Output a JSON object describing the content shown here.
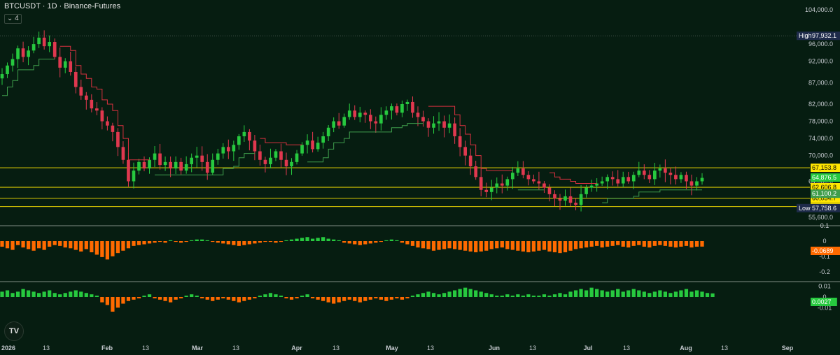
{
  "header": {
    "symbol": "BTCUSDT",
    "interval": "1D",
    "exchange": "Binance-Futures",
    "title": "BTCUSDT · 1D · Binance-Futures",
    "collapse_count": "4"
  },
  "colors": {
    "background": "#061d11",
    "up_candle": "#27c93f",
    "down_candle": "#e0384f",
    "supertrend_up": "#3f9d4c",
    "supertrend_down": "#d7313f",
    "level_line": "#ffe600",
    "osc_positive": "#27c93f",
    "osc_negative": "#ff6a00",
    "axis_text": "#c9cdd3"
  },
  "chart_data": [
    {
      "type": "candlestick",
      "panel": "price",
      "price_axis_ticks": [
        "104,000.0",
        "96,000.0",
        "92,000.0",
        "87,000.0",
        "82,000.0",
        "78,000.0",
        "74,000.0",
        "70,000.0",
        "64,000.0",
        "55,600.0"
      ],
      "time_axis_ticks": [
        "2026",
        "13",
        "Feb",
        "13",
        "Mar",
        "13",
        "Apr",
        "13",
        "May",
        "13",
        "Jun",
        "13",
        "Jul",
        "13",
        "Aug",
        "13",
        "Sep"
      ],
      "ylim": [
        55000,
        105000
      ],
      "markers": {
        "high": {
          "label": "High",
          "value": "97,932.1"
        },
        "low": {
          "label": "Low",
          "value": "57,758.6"
        },
        "last": {
          "value": "64,876.5"
        }
      },
      "horizontal_levels": [
        {
          "value": "67,153.8",
          "color": "#ffe600"
        },
        {
          "value": "62,606.8",
          "color": "#ffe600"
        },
        {
          "value": "60,054.7",
          "color": "#ffe600"
        },
        {
          "value": "58,090.9",
          "color": "#ffe600"
        }
      ],
      "supertrend_last": {
        "value": "61,100.2"
      },
      "price_path": [
        89000,
        91000,
        92500,
        95000,
        93000,
        94500,
        96000,
        97500,
        95500,
        96500,
        93000,
        90500,
        92000,
        89500,
        86000,
        84000,
        83000,
        81000,
        80500,
        78000,
        77000,
        75500,
        72000,
        69000,
        64000,
        66500,
        68500,
        67000,
        69000,
        70500,
        67800,
        68500,
        67000,
        68500,
        66500,
        68000,
        69500,
        70000,
        68500,
        66000,
        69000,
        70500,
        72000,
        71000,
        72500,
        74500,
        75500,
        73500,
        71000,
        69000,
        68000,
        69500,
        71000,
        69000,
        67500,
        68500,
        70500,
        72500,
        73500,
        71500,
        73000,
        74500,
        76500,
        78000,
        77000,
        79000,
        80500,
        79000,
        80000,
        79500,
        78000,
        77500,
        79500,
        80500,
        81500,
        80000,
        82000,
        82500,
        80000,
        79000,
        78000,
        76500,
        77500,
        78000,
        76500,
        77500,
        74500,
        72000,
        70000,
        67500,
        65000,
        62000,
        61500,
        62500,
        63500,
        63000,
        64500,
        66000,
        67000,
        65500,
        64500,
        64000,
        63500,
        62500,
        61000,
        60000,
        59500,
        60500,
        59000,
        58500,
        61000,
        62500,
        63000,
        63500,
        64000,
        65000,
        64500,
        63500,
        65000,
        64000,
        65500,
        66500,
        65500,
        64500,
        66500,
        67000,
        66000,
        65500,
        64500,
        65500,
        64000,
        63000,
        64000,
        64800
      ]
    },
    {
      "type": "bar",
      "panel": "oscillator-1",
      "axis_ticks": [
        "0.1",
        "0",
        "-0.1",
        "-0.2"
      ],
      "ylim": [
        -0.25,
        0.12
      ],
      "last_value": "-0.0689",
      "values": [
        -0.07,
        -0.09,
        -0.11,
        -0.05,
        -0.08,
        -0.1,
        -0.12,
        -0.09,
        -0.11,
        -0.07,
        -0.05,
        -0.06,
        -0.08,
        -0.09,
        -0.11,
        -0.13,
        -0.1,
        -0.14,
        -0.17,
        -0.2,
        -0.23,
        -0.19,
        -0.15,
        -0.12,
        -0.09,
        -0.06,
        -0.05,
        -0.04,
        -0.03,
        -0.02,
        -0.01,
        -0.02,
        0.01,
        -0.01,
        -0.02,
        -0.01,
        0.01,
        0.02,
        0.02,
        0.01,
        -0.01,
        -0.02,
        -0.03,
        -0.04,
        -0.05,
        -0.06,
        -0.05,
        -0.04,
        -0.03,
        -0.02,
        -0.01,
        -0.01,
        -0.02,
        -0.01,
        0.01,
        0.02,
        0.03,
        0.04,
        0.05,
        0.03,
        0.04,
        0.05,
        0.03,
        0.02,
        0.01,
        -0.02,
        -0.03,
        -0.04,
        -0.05,
        -0.04,
        -0.03,
        -0.02,
        -0.01,
        0.01,
        0.02,
        0.01,
        -0.02,
        -0.04,
        -0.06,
        -0.08,
        -0.09,
        -0.1,
        -0.12,
        -0.11,
        -0.1,
        -0.09,
        -0.1,
        -0.11,
        -0.12,
        -0.13,
        -0.14,
        -0.13,
        -0.12,
        -0.1,
        -0.09,
        -0.08,
        -0.1,
        -0.11,
        -0.12,
        -0.13,
        -0.14,
        -0.13,
        -0.12,
        -0.11,
        -0.13,
        -0.14,
        -0.15,
        -0.14,
        -0.12,
        -0.1,
        -0.09,
        -0.08,
        -0.07,
        -0.06,
        -0.08,
        -0.07,
        -0.06,
        -0.05,
        -0.07,
        -0.08,
        -0.06,
        -0.05,
        -0.07,
        -0.08,
        -0.06,
        -0.05,
        -0.06,
        -0.07,
        -0.08,
        -0.07,
        -0.06,
        -0.08,
        -0.07,
        -0.0689
      ]
    },
    {
      "type": "bar",
      "panel": "oscillator-2",
      "axis_ticks": [
        "0.01",
        "0",
        "-0.01"
      ],
      "ylim": [
        -0.015,
        0.012
      ],
      "last_value": "0.0027",
      "values": [
        0.004,
        0.005,
        0.003,
        0.004,
        0.006,
        0.005,
        0.004,
        0.003,
        0.004,
        0.005,
        0.003,
        0.002,
        0.003,
        0.004,
        0.005,
        0.004,
        0.003,
        0.002,
        0.001,
        -0.004,
        -0.006,
        -0.011,
        -0.008,
        -0.005,
        -0.003,
        -0.002,
        -0.001,
        0.001,
        0.002,
        -0.001,
        -0.002,
        -0.003,
        -0.004,
        -0.002,
        -0.001,
        0.001,
        0.002,
        0.001,
        -0.001,
        -0.002,
        -0.003,
        -0.002,
        -0.001,
        -0.002,
        -0.003,
        -0.004,
        -0.003,
        -0.002,
        -0.001,
        0.001,
        0.002,
        0.003,
        0.002,
        0.001,
        -0.001,
        -0.002,
        -0.001,
        0.001,
        0.002,
        -0.001,
        -0.002,
        -0.003,
        -0.004,
        -0.005,
        -0.004,
        -0.003,
        -0.002,
        -0.003,
        -0.004,
        -0.003,
        -0.002,
        -0.001,
        -0.002,
        -0.003,
        -0.002,
        -0.001,
        -0.002,
        -0.001,
        0.001,
        0.002,
        0.003,
        0.004,
        0.003,
        0.002,
        0.003,
        0.004,
        0.005,
        0.006,
        0.007,
        0.006,
        0.005,
        0.004,
        0.003,
        0.002,
        0.001,
        0.001,
        0.002,
        0.001,
        0.002,
        0.001,
        0.002,
        0.001,
        0.001,
        0.002,
        0.001,
        0.002,
        0.003,
        0.002,
        0.004,
        0.005,
        0.006,
        0.005,
        0.007,
        0.006,
        0.005,
        0.004,
        0.005,
        0.006,
        0.004,
        0.005,
        0.006,
        0.005,
        0.004,
        0.003,
        0.004,
        0.005,
        0.004,
        0.003,
        0.004,
        0.005,
        0.006,
        0.004,
        0.005,
        0.004,
        0.003,
        0.0027
      ]
    }
  ]
}
